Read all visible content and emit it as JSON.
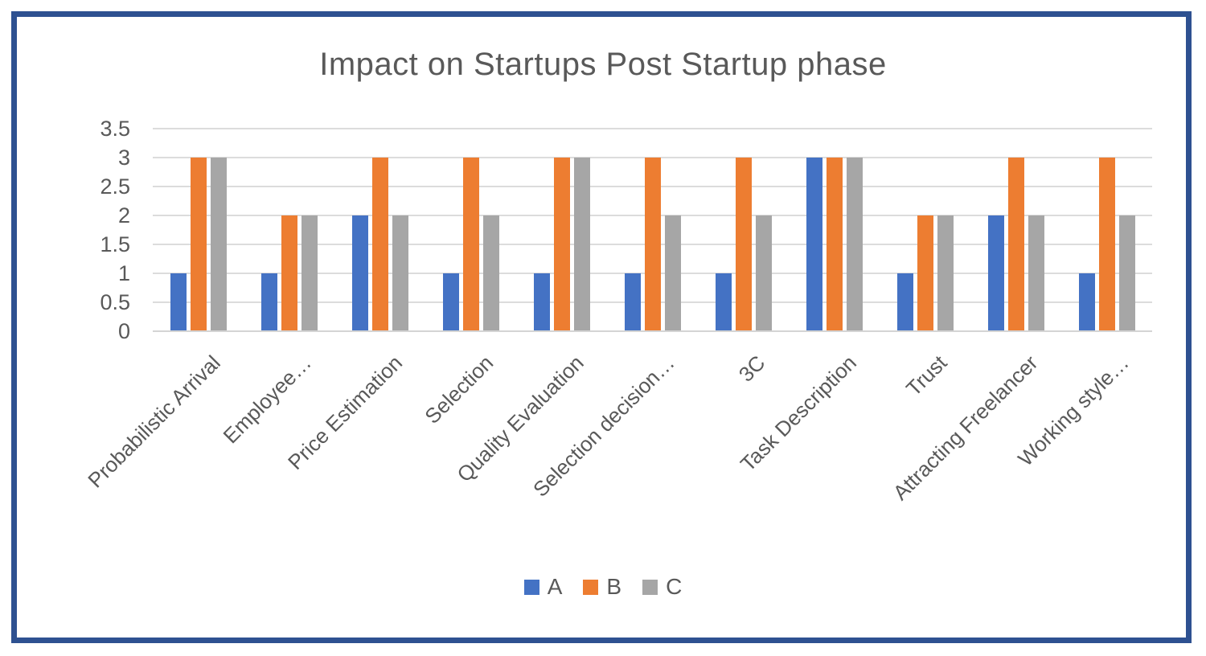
{
  "frame": {
    "border_color": "#2E5191"
  },
  "text_color": "#595959",
  "gridline_color": "#DCDCDC",
  "chart_data": {
    "type": "bar",
    "title": "Impact on Startups Post Startup phase",
    "categories": [
      "Probabilistic Arrival",
      "Employee…",
      "Price Estimation",
      "Selection",
      "Quality Evaluation",
      "Selection decision…",
      "3C",
      "Task Description",
      "Trust",
      "Attracting Freelancer",
      "Working style…"
    ],
    "series": [
      {
        "name": "A",
        "color": "#4472C4",
        "values": [
          1,
          1,
          2,
          1,
          1,
          1,
          1,
          3,
          1,
          2,
          1
        ]
      },
      {
        "name": "B",
        "color": "#ED7D31",
        "values": [
          3,
          2,
          3,
          3,
          3,
          3,
          3,
          3,
          2,
          3,
          3
        ]
      },
      {
        "name": "C",
        "color": "#A6A6A6",
        "values": [
          3,
          2,
          2,
          2,
          3,
          2,
          2,
          3,
          2,
          2,
          2
        ]
      }
    ],
    "y_ticks": [
      0,
      0.5,
      1,
      1.5,
      2,
      2.5,
      3,
      3.5
    ],
    "y_tick_labels": [
      "0",
      "0.5",
      "1",
      "1.5",
      "2",
      "2.5",
      "3",
      "3.5"
    ],
    "ylim": [
      0,
      3.5
    ],
    "grid": true,
    "legend_position": "bottom",
    "xlabel": "",
    "ylabel": ""
  }
}
